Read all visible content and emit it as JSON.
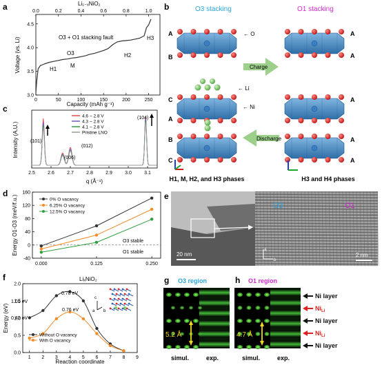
{
  "panel_letters": {
    "a": "a",
    "b": "b",
    "c": "c",
    "d": "d",
    "e": "e",
    "f": "f",
    "g": "g",
    "h": "h"
  },
  "chart_data": [
    {
      "panel": "a",
      "type": "line",
      "ylabel": "Voltage (vs. Li)",
      "xlabel": "Capacity (mAh g⁻¹)",
      "top_axis_label": "Li₁₋ₓNiO₂",
      "xlim": [
        0,
        275
      ],
      "ylim": [
        3.0,
        4.7
      ],
      "x_ticks": [
        "0",
        "50",
        "100",
        "150",
        "200",
        "250"
      ],
      "x_tick_values": [
        0,
        50,
        100,
        150,
        200,
        250
      ],
      "top_ticks": [
        "0.0",
        "0.2",
        "0.4",
        "0.6",
        "0.8",
        "1.0"
      ],
      "top_tick_values": [
        0.0,
        0.2,
        0.4,
        0.6,
        0.8,
        1.0
      ],
      "y_ticks": [
        "3.0",
        "3.5",
        "4.0",
        "4.5"
      ],
      "y_tick_values": [
        3.0,
        3.5,
        4.0,
        4.5
      ],
      "x": [
        0,
        2,
        5,
        10,
        15,
        20,
        30,
        40,
        50,
        60,
        70,
        80,
        90,
        100,
        110,
        120,
        130,
        140,
        150,
        160,
        170,
        180,
        190,
        200,
        210,
        220,
        230,
        240,
        245,
        250,
        255
      ],
      "y": [
        3.05,
        3.3,
        3.55,
        3.62,
        3.64,
        3.66,
        3.69,
        3.71,
        3.73,
        3.75,
        3.76,
        3.78,
        3.79,
        3.81,
        3.83,
        3.86,
        3.88,
        3.91,
        3.94,
        3.98,
        4.06,
        4.12,
        4.14,
        4.15,
        4.16,
        4.18,
        4.2,
        4.25,
        4.42,
        4.48,
        4.6
      ],
      "annotations": [
        "H1",
        "M",
        "O3",
        "H2",
        "H3",
        "O3 + O1 stacking fault"
      ]
    },
    {
      "panel": "c",
      "type": "line",
      "ylabel": "Intensity (A.U.)",
      "xlabel": "q (Å⁻¹)",
      "xlim": [
        2.5,
        3.15
      ],
      "x_ticks": [
        "2.5",
        "2.6",
        "2.7",
        "2.8",
        "2.9",
        "3.0",
        "3.1"
      ],
      "x_tick_values": [
        2.5,
        2.6,
        2.7,
        2.8,
        2.9,
        3.0,
        3.1
      ],
      "peak_labels": [
        "(101)",
        "(006)",
        "(012)",
        "(104)"
      ],
      "series": [
        {
          "name": "4.6 ~ 2.8 V",
          "color": "#e8484a"
        },
        {
          "name": "4.3 ~ 2.8 V",
          "color": "#6a5acd"
        },
        {
          "name": "4.1 ~ 2.8 V",
          "color": "#2e9e3e"
        },
        {
          "name": "Pristine LNO",
          "color": "#9a9a9a"
        }
      ]
    },
    {
      "panel": "d",
      "type": "line",
      "ylabel": "Energy O1-O3 (meV/f.u.)",
      "xlim": [
        -0.02,
        0.27
      ],
      "ylim": [
        -40,
        160
      ],
      "categories": [
        "0.000",
        "0.125",
        "0.250"
      ],
      "x": [
        0.0,
        0.125,
        0.25
      ],
      "y_ticks": [
        "-40",
        "0",
        "40",
        "80",
        "120",
        "160"
      ],
      "y_tick_values": [
        -40,
        0,
        40,
        80,
        120,
        160
      ],
      "series": [
        {
          "name": "0% O vacancy",
          "color": "#333333",
          "values": [
            -3,
            58,
            142
          ]
        },
        {
          "name": "6.25% O vacancy",
          "color": "#f28c28",
          "values": [
            -12,
            30,
            108
          ]
        },
        {
          "name": "12.5% O vacancy",
          "color": "#2e9e3e",
          "values": [
            -22,
            8,
            78
          ]
        }
      ],
      "region_labels": {
        "upper": "O3 stable",
        "lower": "O1 stable"
      }
    },
    {
      "panel": "f",
      "type": "line",
      "title": "LiₓNiO₂",
      "ylabel": "Energy (eV)",
      "xlabel": "Reaction coordinate",
      "xlim": [
        0.5,
        9
      ],
      "ylim": [
        0,
        2.0
      ],
      "x_ticks": [
        "1",
        "2",
        "3",
        "4",
        "5",
        "6",
        "7",
        "8",
        "9"
      ],
      "x_tick_values": [
        1,
        2,
        3,
        4,
        5,
        6,
        7,
        8,
        9
      ],
      "y_ticks": [
        "0.0",
        "0.5",
        "1.0",
        "1.5",
        "2.0"
      ],
      "y_tick_values": [
        0.0,
        0.5,
        1.0,
        1.5,
        2.0
      ],
      "series": [
        {
          "name": "Without O vacancy",
          "color": "#333333",
          "x": [
            1,
            2,
            3,
            4,
            5,
            6,
            7,
            8
          ],
          "values": [
            1.01,
            1.22,
            1.65,
            1.77,
            1.5,
            0.7,
            0.25,
            0.05
          ]
        },
        {
          "name": "With O vacancy",
          "color": "#f28c28",
          "x": [
            1,
            2,
            3,
            4,
            5,
            6,
            7,
            8
          ],
          "values": [
            0.42,
            0.55,
            0.98,
            1.18,
            0.98,
            0.55,
            0.2,
            0.05
          ]
        }
      ],
      "annotations": [
        "1.01 eV",
        "0.78 eV",
        "0.42 eV",
        "0.76 eV"
      ],
      "inset_axes": [
        "a",
        "b",
        "c"
      ]
    }
  ],
  "panel_b": {
    "o3_title": "O3 stacking",
    "o1_title": "O1 stacking",
    "charge": "Charge",
    "discharge": "Discharge",
    "left_layers": [
      "A",
      "B",
      "C",
      "A",
      "B",
      "C"
    ],
    "right_layers": [
      "A",
      "A",
      "A",
      "A",
      "A"
    ],
    "o_label": "← O",
    "li_label": "← Li",
    "ni_label": "← Ni",
    "left_caption": "H1, M, H2, and H3 phases",
    "right_caption": "H3 and H4 phases"
  },
  "panel_e": {
    "scale_left": "20 nm",
    "scale_right": "2 nm",
    "o3_label": "O3",
    "o1_label": "O1",
    "axis_a": "a",
    "axis_b": "b"
  },
  "panel_g": {
    "title": "O3 region",
    "distance": "5.2 Å",
    "simul": "simul.",
    "exp": "exp."
  },
  "panel_h": {
    "title": "O1 region",
    "distance": "4.7 Å",
    "simul": "simul.",
    "exp": "exp.",
    "layers": [
      "Ni layer",
      "Ni",
      "Ni layer",
      "Ni",
      "Ni layer"
    ],
    "sub_li": "Li"
  }
}
